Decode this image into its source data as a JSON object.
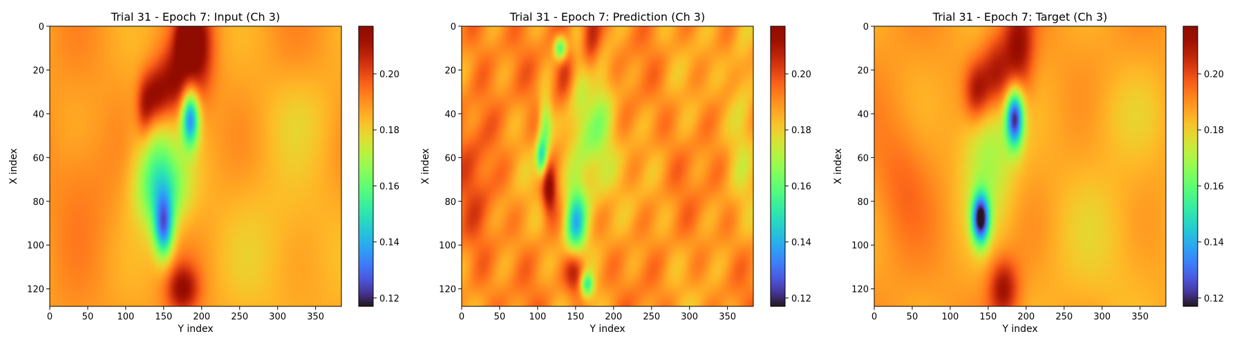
{
  "chart_data": [
    {
      "type": "heatmap",
      "title": "Trial 31 - Epoch 7: Input (Ch 3)",
      "xlabel": "Y index",
      "ylabel": "X index",
      "xlim": [
        0,
        384
      ],
      "ylim": [
        128,
        0
      ],
      "xticks": [
        "0",
        "50",
        "100",
        "150",
        "200",
        "250",
        "300",
        "350"
      ],
      "yticks": [
        "0",
        "20",
        "40",
        "60",
        "80",
        "100",
        "120"
      ],
      "colorbar": {
        "min": 0.117,
        "max": 0.217,
        "ticks": [
          "0.12",
          "0.14",
          "0.16",
          "0.18",
          "0.20"
        ]
      },
      "colormap": "turbo",
      "background_value": 0.188,
      "features": [
        {
          "x": 195,
          "y": 10,
          "sx": 14,
          "sy": 16,
          "value": 0.213
        },
        {
          "x": 180,
          "y": 5,
          "sx": 10,
          "sy": 8,
          "value": 0.215
        },
        {
          "x": 165,
          "y": 25,
          "sx": 14,
          "sy": 12,
          "value": 0.212
        },
        {
          "x": 140,
          "y": 32,
          "sx": 12,
          "sy": 10,
          "value": 0.214
        },
        {
          "x": 125,
          "y": 38,
          "sx": 8,
          "sy": 10,
          "value": 0.205
        },
        {
          "x": 185,
          "y": 42,
          "sx": 8,
          "sy": 9,
          "value": 0.135
        },
        {
          "x": 140,
          "y": 60,
          "sx": 20,
          "sy": 20,
          "value": 0.168
        },
        {
          "x": 150,
          "y": 75,
          "sx": 25,
          "sy": 12,
          "value": 0.165
        },
        {
          "x": 150,
          "y": 92,
          "sx": 9,
          "sy": 10,
          "value": 0.14
        },
        {
          "x": 175,
          "y": 120,
          "sx": 15,
          "sy": 8,
          "value": 0.212
        },
        {
          "x": 40,
          "y": 70,
          "sx": 30,
          "sy": 20,
          "value": 0.193
        },
        {
          "x": 330,
          "y": 40,
          "sx": 40,
          "sy": 15,
          "value": 0.183
        },
        {
          "x": 300,
          "y": 100,
          "sx": 60,
          "sy": 30,
          "value": 0.182
        }
      ]
    },
    {
      "type": "heatmap",
      "title": "Trial 31 - Epoch 7: Prediction (Ch 3)",
      "xlabel": "Y index",
      "ylabel": "X index",
      "xlim": [
        0,
        384
      ],
      "ylim": [
        128,
        0
      ],
      "xticks": [
        "0",
        "50",
        "100",
        "150",
        "200",
        "250",
        "300",
        "350"
      ],
      "yticks": [
        "0",
        "20",
        "40",
        "60",
        "80",
        "100",
        "120"
      ],
      "colorbar": {
        "min": 0.117,
        "max": 0.217,
        "ticks": [
          "0.12",
          "0.14",
          "0.16",
          "0.18",
          "0.20"
        ]
      },
      "colormap": "turbo",
      "background_value": 0.189,
      "features": [
        {
          "x": 170,
          "y": 10,
          "sx": 10,
          "sy": 20,
          "value": 0.214
        },
        {
          "x": 135,
          "y": 20,
          "sx": 10,
          "sy": 15,
          "value": 0.205
        },
        {
          "x": 130,
          "y": 10,
          "sx": 6,
          "sy": 4,
          "value": 0.15
        },
        {
          "x": 110,
          "y": 45,
          "sx": 6,
          "sy": 10,
          "value": 0.165
        },
        {
          "x": 115,
          "y": 75,
          "sx": 7,
          "sy": 8,
          "value": 0.216
        },
        {
          "x": 105,
          "y": 60,
          "sx": 5,
          "sy": 6,
          "value": 0.155
        },
        {
          "x": 170,
          "y": 45,
          "sx": 20,
          "sy": 25,
          "value": 0.162
        },
        {
          "x": 150,
          "y": 90,
          "sx": 10,
          "sy": 12,
          "value": 0.145
        },
        {
          "x": 150,
          "y": 112,
          "sx": 10,
          "sy": 8,
          "value": 0.214
        },
        {
          "x": 165,
          "y": 118,
          "sx": 6,
          "sy": 4,
          "value": 0.155
        },
        {
          "x": 20,
          "y": 60,
          "sx": 20,
          "sy": 60,
          "value": 0.196
        },
        {
          "x": 370,
          "y": 30,
          "sx": 12,
          "sy": 30,
          "value": 0.177
        }
      ]
    },
    {
      "type": "heatmap",
      "title": "Trial 31 - Epoch 7: Target (Ch 3)",
      "xlabel": "Y index",
      "ylabel": "X index",
      "xlim": [
        0,
        384
      ],
      "ylim": [
        128,
        0
      ],
      "xticks": [
        "0",
        "50",
        "100",
        "150",
        "200",
        "250",
        "300",
        "350"
      ],
      "yticks": [
        "0",
        "20",
        "40",
        "60",
        "80",
        "100",
        "120"
      ],
      "colorbar": {
        "min": 0.117,
        "max": 0.217,
        "ticks": [
          "0.12",
          "0.14",
          "0.16",
          "0.18",
          "0.20"
        ]
      },
      "colormap": "turbo",
      "background_value": 0.188,
      "features": [
        {
          "x": 190,
          "y": 10,
          "sx": 14,
          "sy": 16,
          "value": 0.213
        },
        {
          "x": 160,
          "y": 22,
          "sx": 14,
          "sy": 12,
          "value": 0.212
        },
        {
          "x": 135,
          "y": 30,
          "sx": 12,
          "sy": 10,
          "value": 0.212
        },
        {
          "x": 185,
          "y": 42,
          "sx": 8,
          "sy": 9,
          "value": 0.125
        },
        {
          "x": 150,
          "y": 55,
          "sx": 25,
          "sy": 25,
          "value": 0.168
        },
        {
          "x": 140,
          "y": 88,
          "sx": 8,
          "sy": 8,
          "value": 0.12
        },
        {
          "x": 170,
          "y": 120,
          "sx": 14,
          "sy": 10,
          "value": 0.212
        },
        {
          "x": 35,
          "y": 70,
          "sx": 25,
          "sy": 20,
          "value": 0.195
        },
        {
          "x": 330,
          "y": 40,
          "sx": 40,
          "sy": 15,
          "value": 0.183
        },
        {
          "x": 300,
          "y": 100,
          "sx": 60,
          "sy": 30,
          "value": 0.182
        }
      ]
    }
  ]
}
